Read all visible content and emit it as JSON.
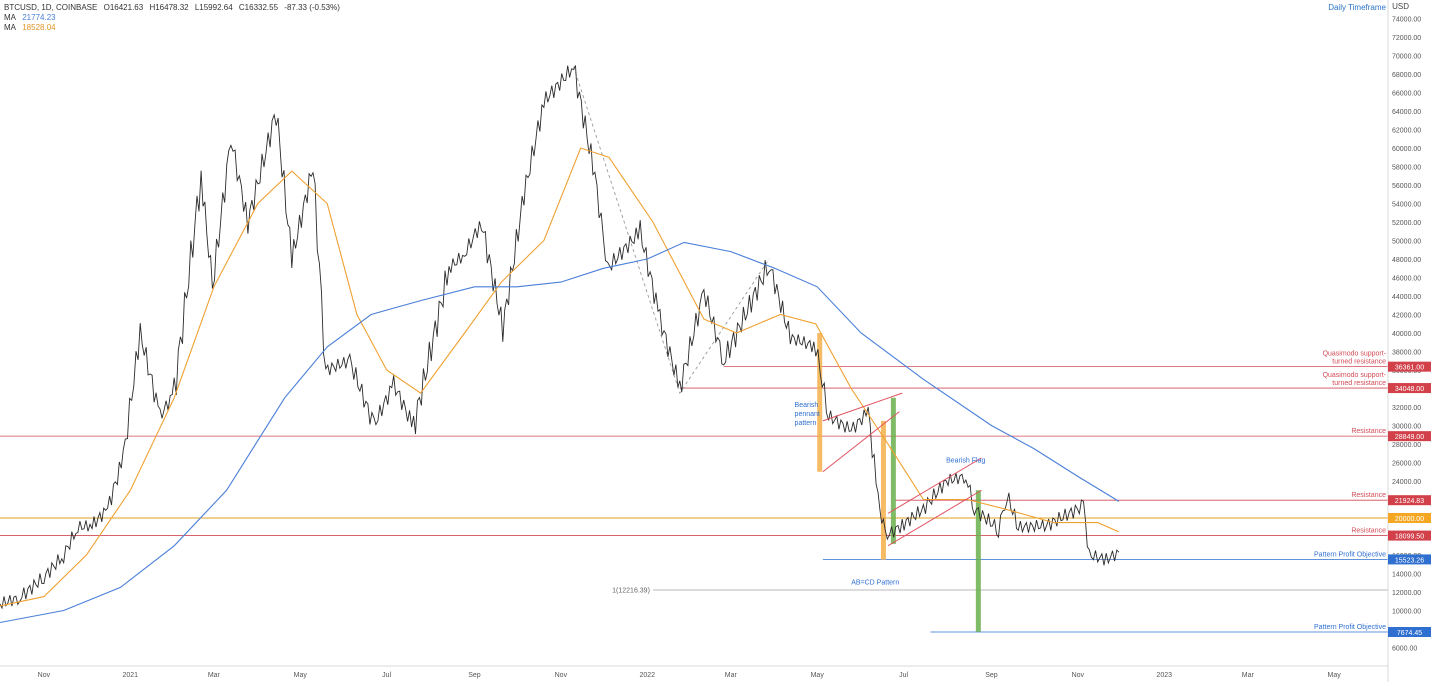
{
  "header": {
    "symbol": "BTCUSD, 1D, COINBASE",
    "open_label": "O",
    "open": "16421.63",
    "high_label": "H",
    "high": "16478.32",
    "low_label": "L",
    "low": "15992.64",
    "close_label": "C",
    "close": "16332.55",
    "change": "-87.33 (-0.53%)",
    "ma1_label": "MA",
    "ma1_value": "21774.23",
    "ma2_label": "MA",
    "ma2_value": "18528.04",
    "timeframe": "Daily Timeframe",
    "currency": "USD"
  },
  "colors": {
    "candle": "#2b2b2b",
    "ma_fast": "#f0a030",
    "ma_slow": "#4a7fd8",
    "resistance": "#d24b57",
    "support_gold": "#e0a020",
    "objective": "#2f6fd0",
    "fib": "#9a9a9a",
    "pattern_red": "#e05060",
    "pattern_orange": "#f5b04a",
    "pattern_green": "#6ab04c",
    "label_red_bg": "#d2404a",
    "label_gold_bg": "#f5a623",
    "label_blue_bg": "#2f6fd0"
  },
  "chart_data": {
    "type": "line",
    "title": "",
    "xlabel": "",
    "ylabel": "USD",
    "ylim": [
      4000,
      76000
    ],
    "x_range": [
      "2020-10-01",
      "2023-06-08"
    ],
    "x_ticks": [
      {
        "date": "2020-11-01",
        "label": "Nov"
      },
      {
        "date": "2021-01-01",
        "label": "2021"
      },
      {
        "date": "2021-03-01",
        "label": "Mar"
      },
      {
        "date": "2021-05-01",
        "label": "May"
      },
      {
        "date": "2021-07-01",
        "label": "Jul"
      },
      {
        "date": "2021-09-01",
        "label": "Sep"
      },
      {
        "date": "2021-11-01",
        "label": "Nov"
      },
      {
        "date": "2022-01-01",
        "label": "2022"
      },
      {
        "date": "2022-03-01",
        "label": "Mar"
      },
      {
        "date": "2022-05-01",
        "label": "May"
      },
      {
        "date": "2022-07-01",
        "label": "Jul"
      },
      {
        "date": "2022-09-01",
        "label": "Sep"
      },
      {
        "date": "2022-11-01",
        "label": "Nov"
      },
      {
        "date": "2023-01-01",
        "label": "2023"
      },
      {
        "date": "2023-03-01",
        "label": "Mar"
      },
      {
        "date": "2023-05-01",
        "label": "May"
      }
    ],
    "y_ticks": [
      6000,
      8000,
      10000,
      12000,
      14000,
      16000,
      18000,
      20000,
      22000,
      24000,
      26000,
      28000,
      30000,
      32000,
      34000,
      36000,
      38000,
      40000,
      42000,
      44000,
      46000,
      48000,
      50000,
      52000,
      54000,
      56000,
      58000,
      60000,
      62000,
      64000,
      66000,
      68000,
      70000,
      72000,
      74000
    ],
    "series": [
      {
        "name": "",
        "style": "price",
        "points": [
          [
            "2020-10-01",
            10700
          ],
          [
            "2020-10-15",
            11400
          ],
          [
            "2020-11-01",
            13600
          ],
          [
            "2020-11-15",
            16000
          ],
          [
            "2020-11-25",
            19000
          ],
          [
            "2020-12-05",
            19200
          ],
          [
            "2020-12-16",
            21000
          ],
          [
            "2020-12-27",
            26500
          ],
          [
            "2021-01-08",
            40000
          ],
          [
            "2021-01-22",
            31000
          ],
          [
            "2021-02-01",
            33500
          ],
          [
            "2021-02-20",
            57000
          ],
          [
            "2021-02-28",
            45000
          ],
          [
            "2021-03-13",
            61000
          ],
          [
            "2021-03-25",
            52000
          ],
          [
            "2021-04-14",
            64000
          ],
          [
            "2021-04-25",
            48000
          ],
          [
            "2021-05-10",
            58000
          ],
          [
            "2021-05-19",
            36000
          ],
          [
            "2021-06-05",
            37000
          ],
          [
            "2021-06-22",
            30000
          ],
          [
            "2021-07-06",
            34500
          ],
          [
            "2021-07-20",
            29800
          ],
          [
            "2021-08-14",
            47000
          ],
          [
            "2021-08-25",
            48500
          ],
          [
            "2021-09-06",
            52000
          ],
          [
            "2021-09-21",
            40500
          ],
          [
            "2021-10-06",
            55000
          ],
          [
            "2021-10-20",
            65000
          ],
          [
            "2021-11-10",
            68800
          ],
          [
            "2021-11-25",
            57000
          ],
          [
            "2021-12-04",
            47000
          ],
          [
            "2021-12-27",
            51000
          ],
          [
            "2022-01-10",
            41500
          ],
          [
            "2022-01-24",
            34000
          ],
          [
            "2022-02-10",
            44500
          ],
          [
            "2022-02-24",
            37000
          ],
          [
            "2022-03-28",
            47500
          ],
          [
            "2022-04-12",
            39500
          ],
          [
            "2022-04-30",
            38500
          ],
          [
            "2022-05-09",
            31000
          ],
          [
            "2022-05-25",
            29500
          ],
          [
            "2022-06-06",
            31500
          ],
          [
            "2022-06-13",
            22000
          ],
          [
            "2022-06-18",
            18000
          ],
          [
            "2022-06-30",
            19200
          ],
          [
            "2022-07-15",
            21000
          ],
          [
            "2022-07-31",
            24000
          ],
          [
            "2022-08-14",
            24500
          ],
          [
            "2022-08-20",
            21000
          ],
          [
            "2022-09-06",
            18800
          ],
          [
            "2022-09-12",
            22500
          ],
          [
            "2022-09-20",
            19000
          ],
          [
            "2022-10-10",
            19200
          ],
          [
            "2022-11-05",
            21300
          ],
          [
            "2022-11-09",
            16000
          ],
          [
            "2022-11-21",
            15500
          ],
          [
            "2022-11-30",
            16300
          ]
        ]
      },
      {
        "name": "MA",
        "style": "ma_fast",
        "points": [
          [
            "2020-10-01",
            10500
          ],
          [
            "2020-11-01",
            11500
          ],
          [
            "2020-12-01",
            16000
          ],
          [
            "2021-01-01",
            23000
          ],
          [
            "2021-02-01",
            33000
          ],
          [
            "2021-03-01",
            45000
          ],
          [
            "2021-04-01",
            54000
          ],
          [
            "2021-04-25",
            57500
          ],
          [
            "2021-05-20",
            54000
          ],
          [
            "2021-06-10",
            42000
          ],
          [
            "2021-07-01",
            36000
          ],
          [
            "2021-07-25",
            33500
          ],
          [
            "2021-08-25",
            40000
          ],
          [
            "2021-09-20",
            45500
          ],
          [
            "2021-10-20",
            50000
          ],
          [
            "2021-11-15",
            60000
          ],
          [
            "2021-12-05",
            59000
          ],
          [
            "2022-01-05",
            52000
          ],
          [
            "2022-02-10",
            41500
          ],
          [
            "2022-03-05",
            40000
          ],
          [
            "2022-04-05",
            42000
          ],
          [
            "2022-04-30",
            41000
          ],
          [
            "2022-05-25",
            34000
          ],
          [
            "2022-06-20",
            28000
          ],
          [
            "2022-07-15",
            22000
          ],
          [
            "2022-08-15",
            22000
          ],
          [
            "2022-09-10",
            21000
          ],
          [
            "2022-10-15",
            19500
          ],
          [
            "2022-11-15",
            19500
          ],
          [
            "2022-11-30",
            18500
          ]
        ]
      },
      {
        "name": "MA",
        "style": "ma_slow",
        "points": [
          [
            "2020-10-01",
            8700
          ],
          [
            "2020-11-15",
            10000
          ],
          [
            "2020-12-25",
            12500
          ],
          [
            "2021-02-01",
            17000
          ],
          [
            "2021-03-10",
            23000
          ],
          [
            "2021-04-20",
            33000
          ],
          [
            "2021-05-20",
            38500
          ],
          [
            "2021-06-20",
            42000
          ],
          [
            "2021-07-25",
            43500
          ],
          [
            "2021-09-01",
            45000
          ],
          [
            "2021-10-01",
            45000
          ],
          [
            "2021-11-01",
            45500
          ],
          [
            "2021-12-01",
            47000
          ],
          [
            "2022-01-01",
            48000
          ],
          [
            "2022-01-27",
            49800
          ],
          [
            "2022-03-01",
            48800
          ],
          [
            "2022-04-01",
            47000
          ],
          [
            "2022-05-01",
            45000
          ],
          [
            "2022-06-01",
            40000
          ],
          [
            "2022-07-15",
            35000
          ],
          [
            "2022-09-01",
            30000
          ],
          [
            "2022-10-01",
            27500
          ],
          [
            "2022-11-01",
            24500
          ],
          [
            "2022-11-30",
            21800
          ]
        ]
      }
    ],
    "annotations": {
      "hlines": [
        {
          "value": 36361,
          "label": "36361.00",
          "kind": "red",
          "start": "2022-02-24",
          "note": "Quasimodo support-\nturned resistance"
        },
        {
          "value": 34048,
          "label": "34048.00",
          "kind": "red",
          "start": "2022-01-24",
          "note": "Quasimodo support-\nturned resistance"
        },
        {
          "value": 28849,
          "label": "28849.00",
          "kind": "red_thin",
          "start": "2020-10-01",
          "note": "Resistance"
        },
        {
          "value": 21924.83,
          "label": "21924.83",
          "kind": "red_thin",
          "start": "2022-06-25",
          "note": "Resistance"
        },
        {
          "value": 20000,
          "label": "20000.00",
          "kind": "gold",
          "start": "2020-10-01",
          "note": ""
        },
        {
          "value": 18099.5,
          "label": "18099.50",
          "kind": "red_thin",
          "start": "2020-10-01",
          "note": "Resistance"
        },
        {
          "value": 15523.26,
          "label": "15523.26",
          "kind": "blue",
          "start": "2022-05-05",
          "note": "Pattern Profit Objective"
        },
        {
          "value": 12216.39,
          "label": "",
          "kind": "fib",
          "start": "2022-01-05",
          "note": "1(12216.39)"
        },
        {
          "value": 7674.45,
          "label": "7674.45",
          "kind": "blue",
          "start": "2022-07-20",
          "note": "Pattern Profit Objective"
        }
      ],
      "texts": [
        {
          "text": "Bearish\npennant\npattern",
          "date": "2022-04-15",
          "value": 32000,
          "kind": "blue"
        },
        {
          "text": "Bearish Flag",
          "date": "2022-07-31",
          "value": 26000,
          "kind": "blue"
        },
        {
          "text": "AB=CD Pattern",
          "date": "2022-05-25",
          "value": 12800,
          "kind": "blue"
        }
      ],
      "bars": [
        {
          "from": "2022-05-01",
          "to": "2022-05-04",
          "low": 25000,
          "high": 40000,
          "kind": "orange"
        },
        {
          "from": "2022-06-15",
          "to": "2022-06-18",
          "low": 15500,
          "high": 30500,
          "kind": "orange"
        },
        {
          "from": "2022-06-22",
          "to": "2022-06-25",
          "low": 17200,
          "high": 33000,
          "kind": "green"
        },
        {
          "from": "2022-08-21",
          "to": "2022-08-24",
          "low": 7700,
          "high": 23000,
          "kind": "green"
        }
      ],
      "channels": [
        {
          "kind": "red",
          "lines": [
            [
              [
                "2022-05-05",
                30500
              ],
              [
                "2022-06-30",
                33500
              ]
            ],
            [
              [
                "2022-05-05",
                25000
              ],
              [
                "2022-06-28",
                31500
              ]
            ]
          ]
        },
        {
          "kind": "red",
          "lines": [
            [
              [
                "2022-06-20",
                17000
              ],
              [
                "2022-08-25",
                23000
              ]
            ],
            [
              [
                "2022-06-20",
                20500
              ],
              [
                "2022-08-25",
                26500
              ]
            ]
          ]
        }
      ],
      "dashed": [
        [
          [
            "2021-11-10",
            68800
          ],
          [
            "2022-01-24",
            33500
          ],
          [
            "2022-03-28",
            48000
          ]
        ]
      ]
    }
  }
}
